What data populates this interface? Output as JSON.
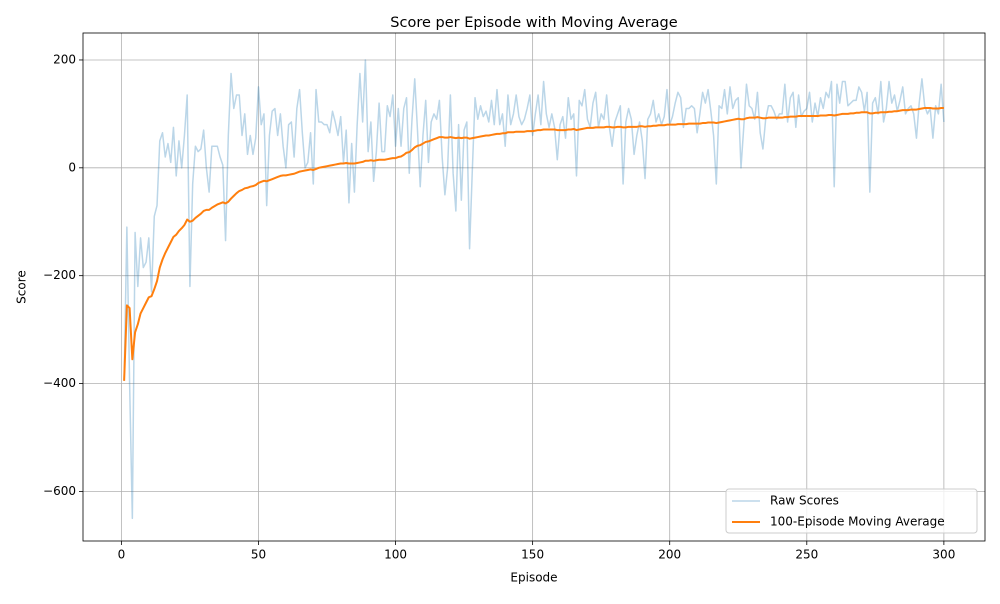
{
  "chart_data": {
    "type": "line",
    "title": "Score per Episode with Moving Average",
    "x_label": "Episode",
    "y_label": "Score",
    "x": [
      1,
      2,
      3,
      4,
      5,
      6,
      7,
      8,
      9,
      10,
      11,
      12,
      13,
      14,
      15,
      16,
      17,
      18,
      19,
      20,
      21,
      22,
      23,
      24,
      25,
      26,
      27,
      28,
      29,
      30,
      31,
      32,
      33,
      34,
      35,
      36,
      37,
      38,
      39,
      40,
      41,
      42,
      43,
      44,
      45,
      46,
      47,
      48,
      49,
      50,
      51,
      52,
      53,
      54,
      55,
      56,
      57,
      58,
      59,
      60,
      61,
      62,
      63,
      64,
      65,
      66,
      67,
      68,
      69,
      70,
      71,
      72,
      73,
      74,
      75,
      76,
      77,
      78,
      79,
      80,
      81,
      82,
      83,
      84,
      85,
      86,
      87,
      88,
      89,
      90,
      91,
      92,
      93,
      94,
      95,
      96,
      97,
      98,
      99,
      100,
      101,
      102,
      103,
      104,
      105,
      106,
      107,
      108,
      109,
      110,
      111,
      112,
      113,
      114,
      115,
      116,
      117,
      118,
      119,
      120,
      121,
      122,
      123,
      124,
      125,
      126,
      127,
      128,
      129,
      130,
      131,
      132,
      133,
      134,
      135,
      136,
      137,
      138,
      139,
      140,
      141,
      142,
      143,
      144,
      145,
      146,
      147,
      148,
      149,
      150,
      151,
      152,
      153,
      154,
      155,
      156,
      157,
      158,
      159,
      160,
      161,
      162,
      163,
      164,
      165,
      166,
      167,
      168,
      169,
      170,
      171,
      172,
      173,
      174,
      175,
      176,
      177,
      178,
      179,
      180,
      181,
      182,
      183,
      184,
      185,
      186,
      187,
      188,
      189,
      190,
      191,
      192,
      193,
      194,
      195,
      196,
      197,
      198,
      199,
      200,
      201,
      202,
      203,
      204,
      205,
      206,
      207,
      208,
      209,
      210,
      211,
      212,
      213,
      214,
      215,
      216,
      217,
      218,
      219,
      220,
      221,
      222,
      223,
      224,
      225,
      226,
      227,
      228,
      229,
      230,
      231,
      232,
      233,
      234,
      235,
      236,
      237,
      238,
      239,
      240,
      241,
      242,
      243,
      244,
      245,
      246,
      247,
      248,
      249,
      250,
      251,
      252,
      253,
      254,
      255,
      256,
      257,
      258,
      259,
      260,
      261,
      262,
      263,
      264,
      265,
      266,
      267,
      268,
      269,
      270,
      271,
      272,
      273,
      274,
      275,
      276,
      277,
      278,
      279,
      280,
      281,
      282,
      283,
      284,
      285,
      286,
      287,
      288,
      289,
      290,
      291,
      292,
      293,
      294,
      295,
      296,
      297,
      298,
      299,
      300
    ],
    "series": [
      {
        "name": "Raw Scores",
        "color": "#1f77b4",
        "opacity": 0.3,
        "width": 1.5,
        "values": [
          -395,
          -110,
          -400,
          -650,
          -120,
          -220,
          -130,
          -185,
          -175,
          -130,
          -230,
          -90,
          -70,
          50,
          65,
          20,
          45,
          10,
          75,
          -15,
          50,
          0,
          60,
          135,
          -220,
          -30,
          40,
          30,
          35,
          70,
          0,
          -45,
          40,
          40,
          40,
          20,
          5,
          -135,
          60,
          175,
          110,
          135,
          135,
          60,
          100,
          25,
          60,
          25,
          55,
          150,
          80,
          100,
          -70,
          60,
          105,
          110,
          60,
          100,
          40,
          0,
          80,
          85,
          20,
          110,
          145,
          65,
          0,
          10,
          65,
          -30,
          145,
          85,
          85,
          80,
          80,
          65,
          105,
          85,
          60,
          95,
          10,
          70,
          -65,
          45,
          -45,
          80,
          175,
          85,
          200,
          30,
          85,
          -25,
          30,
          120,
          30,
          30,
          115,
          95,
          135,
          40,
          110,
          40,
          110,
          130,
          -10,
          90,
          165,
          70,
          -35,
          60,
          125,
          10,
          85,
          100,
          90,
          125,
          20,
          -50,
          0,
          135,
          -10,
          -80,
          80,
          -60,
          70,
          85,
          -150,
          -5,
          130,
          90,
          115,
          95,
          105,
          85,
          125,
          80,
          145,
          80,
          100,
          40,
          135,
          80,
          100,
          135,
          95,
          80,
          90,
          110,
          135,
          60,
          100,
          135,
          80,
          160,
          100,
          75,
          100,
          75,
          15,
          80,
          95,
          55,
          130,
          90,
          100,
          -15,
          125,
          115,
          145,
          90,
          75,
          120,
          140,
          75,
          100,
          90,
          135,
          75,
          40,
          85,
          100,
          115,
          -30,
          85,
          110,
          90,
          25,
          60,
          85,
          50,
          -20,
          90,
          100,
          125,
          85,
          100,
          80,
          95,
          145,
          80,
          95,
          120,
          140,
          130,
          75,
          110,
          110,
          115,
          110,
          65,
          100,
          140,
          120,
          145,
          105,
          60,
          -30,
          115,
          110,
          145,
          100,
          150,
          110,
          125,
          130,
          0,
          75,
          155,
          115,
          110,
          90,
          140,
          65,
          35,
          90,
          115,
          115,
          105,
          90,
          100,
          100,
          155,
          85,
          130,
          140,
          75,
          135,
          95,
          105,
          110,
          140,
          85,
          120,
          95,
          130,
          110,
          140,
          130,
          160,
          -35,
          155,
          120,
          160,
          160,
          115,
          120,
          125,
          125,
          150,
          140,
          105,
          140,
          -45,
          120,
          130,
          100,
          160,
          85,
          110,
          160,
          120,
          135,
          105,
          125,
          150,
          100,
          110,
          115,
          100,
          55,
          120,
          165,
          115,
          100,
          110,
          55,
          115,
          100,
          155,
          85
        ]
      },
      {
        "name": "100-Episode Moving Average",
        "color": "#ff7f0e",
        "opacity": 1,
        "width": 2,
        "values": [
          -395,
          -255,
          -260,
          -355,
          -305,
          -290,
          -270,
          -260,
          -250,
          -240,
          -238,
          -225,
          -210,
          -185,
          -170,
          -158,
          -148,
          -138,
          -128,
          -124,
          -117,
          -112,
          -106,
          -96,
          -100,
          -98,
          -93,
          -89,
          -85,
          -80,
          -78,
          -78,
          -74,
          -71,
          -68,
          -66,
          -64,
          -66,
          -63,
          -57,
          -52,
          -47,
          -43,
          -41,
          -38,
          -37,
          -35,
          -34,
          -32,
          -28,
          -26,
          -24,
          -25,
          -23,
          -21,
          -19,
          -17,
          -15,
          -14,
          -14,
          -13,
          -12,
          -11,
          -9,
          -7,
          -6,
          -5,
          -4,
          -3,
          -4,
          -2,
          0,
          1,
          2,
          3,
          4,
          5,
          6,
          7,
          8,
          8,
          9,
          8,
          8,
          8,
          9,
          10,
          11,
          13,
          13,
          14,
          13,
          14,
          15,
          15,
          15,
          16,
          17,
          18,
          18,
          20,
          21,
          24,
          28,
          29,
          33,
          38,
          41,
          42,
          45,
          48,
          49,
          51,
          53,
          55,
          57,
          57,
          56,
          56,
          57,
          56,
          55,
          56,
          55,
          56,
          56,
          54,
          55,
          56,
          57,
          58,
          59,
          60,
          60,
          61,
          62,
          63,
          63,
          64,
          64,
          66,
          66,
          66,
          67,
          67,
          67,
          67,
          68,
          68,
          68,
          69,
          70,
          70,
          71,
          71,
          71,
          71,
          71,
          70,
          70,
          70,
          70,
          71,
          71,
          72,
          70,
          71,
          72,
          73,
          74,
          74,
          74,
          75,
          75,
          75,
          75,
          76,
          76,
          75,
          75,
          76,
          76,
          75,
          75,
          76,
          76,
          76,
          76,
          77,
          77,
          76,
          77,
          77,
          78,
          78,
          79,
          79,
          79,
          80,
          80,
          80,
          80,
          81,
          81,
          81,
          81,
          82,
          82,
          82,
          82,
          82,
          83,
          83,
          84,
          84,
          84,
          83,
          84,
          85,
          86,
          87,
          88,
          89,
          90,
          91,
          90,
          90,
          92,
          93,
          93,
          93,
          94,
          93,
          92,
          92,
          93,
          93,
          93,
          93,
          93,
          93,
          94,
          94,
          95,
          95,
          95,
          96,
          96,
          96,
          96,
          96,
          96,
          96,
          96,
          97,
          97,
          97,
          98,
          98,
          97,
          98,
          99,
          100,
          100,
          100,
          101,
          101,
          102,
          102,
          103,
          103,
          103,
          101,
          101,
          102,
          102,
          103,
          103,
          103,
          104,
          104,
          105,
          105,
          106,
          107,
          107,
          107,
          108,
          108,
          108,
          109,
          110,
          111,
          111,
          111,
          110,
          110,
          110,
          111,
          111
        ]
      }
    ],
    "xlim": [
      -14,
      315
    ],
    "ylim": [
      -692,
      250
    ],
    "xticks": [
      0,
      50,
      100,
      150,
      200,
      250,
      300
    ],
    "yticks": [
      {
        "value": -600,
        "label": "−600"
      },
      {
        "value": -400,
        "label": "−400"
      },
      {
        "value": -200,
        "label": "−200"
      },
      0,
      200
    ],
    "grid": true,
    "legend": "lower right"
  }
}
